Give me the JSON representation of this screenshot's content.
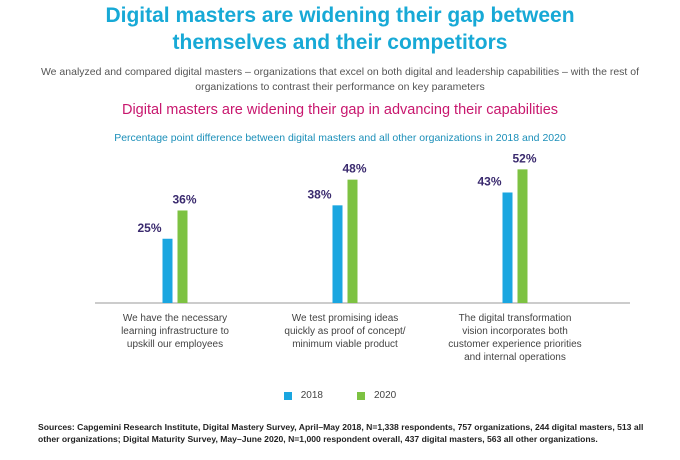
{
  "header": {
    "title_line1": "Digital masters are widening their gap between",
    "title_line2": "themselves and their competitors",
    "intro": "We analyzed and compared digital masters – organizations that excel on both digital and leadership capabilities – with the rest of organizations to contrast their performance on key parameters",
    "subtitle": "Digital masters are widening their gap in advancing their capabilities"
  },
  "colors": {
    "series_2018": "#1aa6e0",
    "series_2020": "#7dc242",
    "title": "#17a9d6",
    "subtitle": "#c8176e"
  },
  "chart_data": {
    "type": "bar",
    "title": "Percentage point difference between digital masters and all other organizations in 2018 and 2020",
    "categories": [
      [
        "We have the necessary",
        "learning infrastructure to",
        "upskill our employees"
      ],
      [
        "We test promising ideas",
        "quickly as proof of concept/",
        "minimum viable product"
      ],
      [
        "The digital transformation",
        "vision incorporates both",
        "customer experience priorities",
        "and internal operations"
      ]
    ],
    "series": [
      {
        "name": "2018",
        "values": [
          25,
          38,
          43
        ],
        "labels": [
          "25%",
          "38%",
          "43%"
        ]
      },
      {
        "name": "2020",
        "values": [
          36,
          48,
          52
        ],
        "labels": [
          "36%",
          "48%",
          "52%"
        ]
      }
    ],
    "ylim": [
      0,
      60
    ],
    "xlabel": "",
    "ylabel": "",
    "legend_position": "bottom"
  },
  "footer": {
    "sources": "Sources: Capgemini Research Institute, Digital Mastery Survey, April–May 2018, N=1,338 respondents, 757 organizations, 244 digital masters, 513 all other organizations; Digital Maturity Survey, May–June 2020, N=1,000 respondent overall, 437 digital masters, 563 all other organizations."
  }
}
